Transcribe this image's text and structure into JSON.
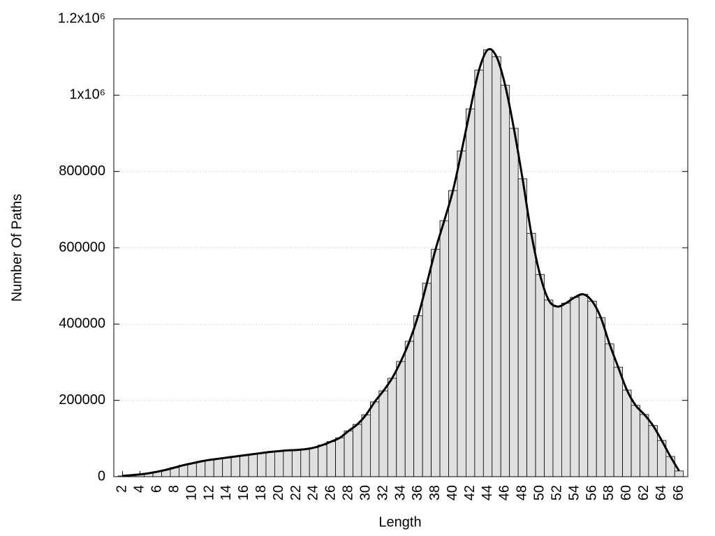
{
  "chart_data": {
    "type": "bar",
    "x_label": "Length",
    "y_label": "Number Of Paths",
    "x": [
      2,
      3,
      4,
      5,
      6,
      7,
      8,
      9,
      10,
      11,
      12,
      13,
      14,
      15,
      16,
      17,
      18,
      19,
      20,
      21,
      22,
      23,
      24,
      25,
      26,
      27,
      28,
      29,
      30,
      31,
      32,
      33,
      34,
      35,
      36,
      37,
      38,
      39,
      40,
      41,
      42,
      43,
      44,
      45,
      46,
      47,
      48,
      49,
      50,
      51,
      52,
      53,
      54,
      55,
      56,
      57,
      58,
      59,
      60,
      61,
      62,
      63,
      64,
      65,
      66
    ],
    "values": [
      2000,
      4000,
      6000,
      9000,
      13000,
      18000,
      24000,
      30000,
      35000,
      40000,
      44000,
      47000,
      50000,
      53000,
      56000,
      59000,
      62000,
      65000,
      67000,
      69000,
      70000,
      72000,
      76000,
      83000,
      92000,
      102000,
      120000,
      137000,
      162000,
      196000,
      225000,
      258000,
      302000,
      355000,
      422000,
      507000,
      596000,
      671000,
      750000,
      854000,
      964000,
      1066000,
      1119000,
      1101000,
      1026000,
      913000,
      781000,
      638000,
      530000,
      463000,
      446000,
      455000,
      470000,
      478000,
      460000,
      417000,
      348000,
      287000,
      227000,
      187000,
      163000,
      134000,
      95000,
      53000,
      15000
    ],
    "color": "#e0e0e0",
    "curve": true,
    "curve_color": "#000000",
    "xlim": [
      1,
      67
    ],
    "xticks": [
      2,
      4,
      6,
      8,
      10,
      12,
      14,
      16,
      18,
      20,
      22,
      24,
      26,
      28,
      30,
      32,
      34,
      36,
      38,
      40,
      42,
      44,
      46,
      48,
      50,
      52,
      54,
      56,
      58,
      60,
      62,
      64,
      66
    ],
    "ylim": [
      0,
      1200000
    ],
    "yticks": [
      0,
      200000,
      400000,
      600000,
      800000,
      {
        "value": 1000000,
        "label": "1x10⁶"
      },
      {
        "value": 1200000,
        "label": "1.2x10⁶"
      }
    ],
    "grid": true
  }
}
